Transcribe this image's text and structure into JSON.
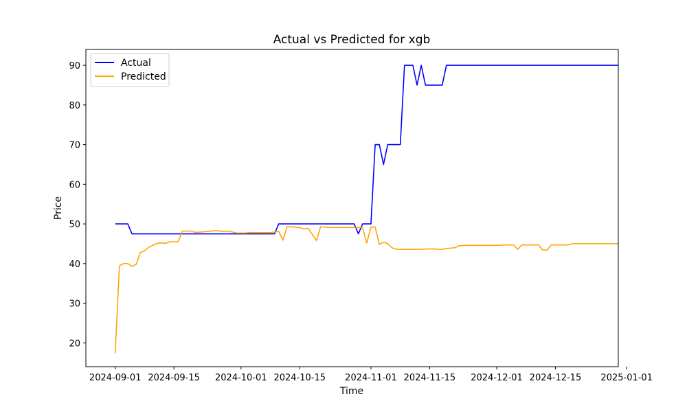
{
  "chart_data": {
    "type": "line",
    "title": "Actual vs Predicted for xgb",
    "xlabel": "Time",
    "ylabel": "Price",
    "x_type": "date",
    "xlim": [
      "2024-08-25",
      "2024-12-30"
    ],
    "ylim": [
      14,
      94
    ],
    "xticks": [
      "2024-09-01",
      "2024-09-15",
      "2024-10-01",
      "2024-10-15",
      "2024-11-01",
      "2024-11-15",
      "2024-12-01",
      "2024-12-15",
      "2025-01-01"
    ],
    "yticks": [
      20,
      30,
      40,
      50,
      60,
      70,
      80,
      90
    ],
    "grid": false,
    "legend": "upper-left",
    "series": [
      {
        "name": "Actual",
        "color": "#0000ff",
        "points": [
          [
            "2024-09-01",
            50
          ],
          [
            "2024-09-04",
            50
          ],
          [
            "2024-09-05",
            47.5
          ],
          [
            "2024-10-09",
            47.5
          ],
          [
            "2024-10-10",
            50
          ],
          [
            "2024-10-28",
            50
          ],
          [
            "2024-10-29",
            47.5
          ],
          [
            "2024-10-30",
            50
          ],
          [
            "2024-11-01",
            50
          ],
          [
            "2024-11-02",
            70
          ],
          [
            "2024-11-03",
            70
          ],
          [
            "2024-11-04",
            65
          ],
          [
            "2024-11-05",
            70
          ],
          [
            "2024-11-08",
            70
          ],
          [
            "2024-11-09",
            90
          ],
          [
            "2024-11-11",
            90
          ],
          [
            "2024-11-12",
            85
          ],
          [
            "2024-11-13",
            90
          ],
          [
            "2024-11-14",
            85
          ],
          [
            "2024-11-18",
            85
          ],
          [
            "2024-11-19",
            90
          ],
          [
            "2024-12-30",
            90
          ]
        ]
      },
      {
        "name": "Predicted",
        "color": "#ffa500",
        "points": [
          [
            "2024-09-01",
            17.4
          ],
          [
            "2024-09-02",
            39.4
          ],
          [
            "2024-09-03",
            40
          ],
          [
            "2024-09-04",
            40
          ],
          [
            "2024-09-05",
            39.3
          ],
          [
            "2024-09-06",
            39.8
          ],
          [
            "2024-09-07",
            42.8
          ],
          [
            "2024-09-08",
            43.2
          ],
          [
            "2024-09-09",
            44.1
          ],
          [
            "2024-09-10",
            44.6
          ],
          [
            "2024-09-11",
            45.1
          ],
          [
            "2024-09-12",
            45.2
          ],
          [
            "2024-09-13",
            45.1
          ],
          [
            "2024-09-14",
            45.5
          ],
          [
            "2024-09-16",
            45.5
          ],
          [
            "2024-09-17",
            48.2
          ],
          [
            "2024-09-19",
            48.2
          ],
          [
            "2024-09-20",
            47.9
          ],
          [
            "2024-09-21",
            47.9
          ],
          [
            "2024-09-23",
            48.1
          ],
          [
            "2024-09-25",
            48.3
          ],
          [
            "2024-09-27",
            48.1
          ],
          [
            "2024-09-28",
            48.2
          ],
          [
            "2024-09-30",
            47.7
          ],
          [
            "2024-10-02",
            47.7
          ],
          [
            "2024-10-03",
            47.8
          ],
          [
            "2024-10-08",
            47.8
          ],
          [
            "2024-10-10",
            48.1
          ],
          [
            "2024-10-11",
            45.9
          ],
          [
            "2024-10-12",
            49.3
          ],
          [
            "2024-10-14",
            49.2
          ],
          [
            "2024-10-15",
            49.1
          ],
          [
            "2024-10-16",
            48.7
          ],
          [
            "2024-10-17",
            48.9
          ],
          [
            "2024-10-19",
            45.8
          ],
          [
            "2024-10-20",
            49.3
          ],
          [
            "2024-10-22",
            49.1
          ],
          [
            "2024-10-28",
            49.1
          ],
          [
            "2024-10-29",
            49.1
          ],
          [
            "2024-10-30",
            49.1
          ],
          [
            "2024-10-31",
            45.2
          ],
          [
            "2024-11-01",
            49.2
          ],
          [
            "2024-11-02",
            49.2
          ],
          [
            "2024-11-03",
            44.8
          ],
          [
            "2024-11-04",
            45.4
          ],
          [
            "2024-11-05",
            45
          ],
          [
            "2024-11-06",
            44
          ],
          [
            "2024-11-07",
            43.6
          ],
          [
            "2024-11-12",
            43.6
          ],
          [
            "2024-11-16",
            43.7
          ],
          [
            "2024-11-17",
            43.6
          ],
          [
            "2024-11-18",
            43.6
          ],
          [
            "2024-11-19",
            43.8
          ],
          [
            "2024-11-21",
            44
          ],
          [
            "2024-11-22",
            44.5
          ],
          [
            "2024-11-24",
            44.6
          ],
          [
            "2024-11-26",
            44.6
          ],
          [
            "2024-12-01",
            44.6
          ],
          [
            "2024-12-03",
            44.7
          ],
          [
            "2024-12-05",
            44.7
          ],
          [
            "2024-12-06",
            43.6
          ],
          [
            "2024-12-07",
            44.7
          ],
          [
            "2024-12-09",
            44.7
          ],
          [
            "2024-12-11",
            44.7
          ],
          [
            "2024-12-12",
            43.4
          ],
          [
            "2024-12-13",
            43.4
          ],
          [
            "2024-12-14",
            44.7
          ],
          [
            "2024-12-18",
            44.7
          ],
          [
            "2024-12-19",
            45
          ],
          [
            "2024-12-30",
            45
          ]
        ]
      }
    ]
  }
}
